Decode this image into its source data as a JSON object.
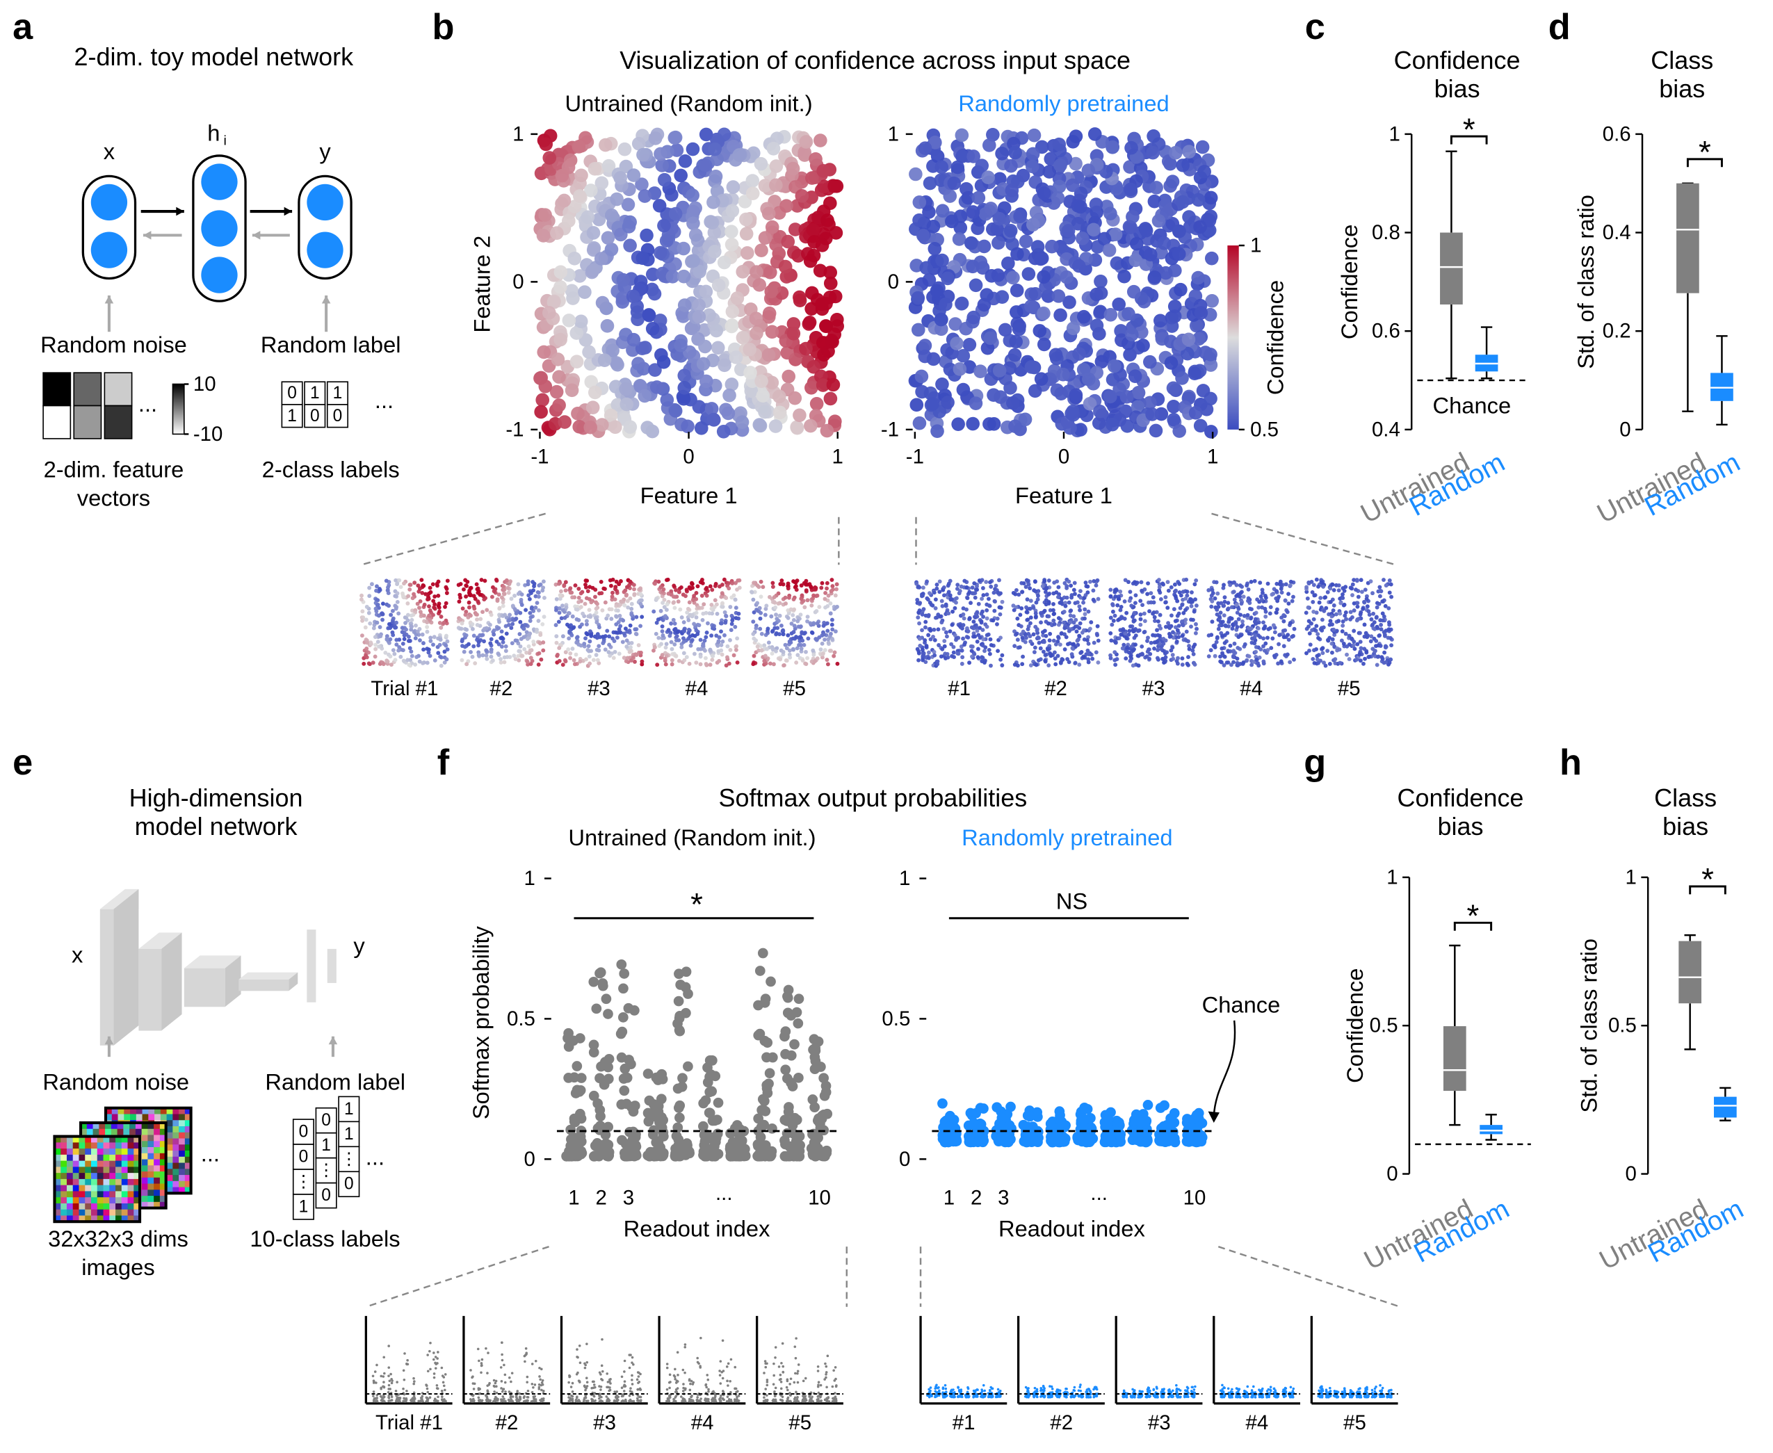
{
  "colors": {
    "untrained": "#808080",
    "pretrained": "#1a8cff"
  },
  "panel_a": {
    "letter": "a",
    "title": "2-dim. toy model network",
    "input_label": "x",
    "hidden_label": "h",
    "hidden_sub": "i",
    "output_label": "y",
    "noise_label": "Random noise",
    "label_label": "Random label",
    "colorbar_ticks": [
      10,
      -10
    ],
    "ellipsis": "...",
    "feature_caption": [
      "2-dim. feature",
      "vectors"
    ],
    "class_caption": "2-class labels",
    "label_grid": [
      [
        0,
        1,
        1
      ],
      [
        1,
        0,
        0
      ]
    ]
  },
  "panel_b": {
    "letter": "b",
    "title": "Visualization of confidence across input space",
    "plots": [
      {
        "subtitle": "Untrained (Random init.)",
        "color": "#000000"
      },
      {
        "subtitle": "Randomly pretrained",
        "color": "#1a8cff"
      }
    ],
    "xlabel": "Feature 1",
    "ylabel": "Feature 2",
    "xlim": [
      -1,
      1
    ],
    "ylim": [
      -1,
      1
    ],
    "xticks": [
      -1,
      0,
      1
    ],
    "yticks": [
      -1,
      0,
      1
    ],
    "colorbar": {
      "label": "Confidence",
      "range": [
        0.5,
        1
      ],
      "ticks": [
        1,
        0.5
      ]
    },
    "trial_labels": [
      "Trial #1",
      "#2",
      "#3",
      "#4",
      "#5"
    ],
    "trial_labels_2": [
      "#1",
      "#2",
      "#3",
      "#4",
      "#5"
    ]
  },
  "panel_c": {
    "letter": "c",
    "title": [
      "Confidence",
      "bias"
    ],
    "ylabel": "Confidence",
    "ylim": [
      0.4,
      1
    ],
    "yticks": [
      0.4,
      0.6,
      0.8,
      1
    ],
    "chance": 0.5,
    "chance_label": "Chance",
    "sig": "*",
    "boxes": [
      {
        "name": "Untrained",
        "color": "#808080",
        "whislo": 0.504,
        "q1": 0.654,
        "med": 0.73,
        "q3": 0.8,
        "whishi": 0.965
      },
      {
        "name": "Random",
        "color": "#1a8cff",
        "whislo": 0.504,
        "q1": 0.518,
        "med": 0.534,
        "q3": 0.552,
        "whishi": 0.608
      }
    ]
  },
  "panel_d": {
    "letter": "d",
    "title": [
      "Class",
      "bias"
    ],
    "ylabel": "Std. of class ratio",
    "ylim": [
      0,
      0.6
    ],
    "yticks": [
      0,
      0.2,
      0.4,
      0.6
    ],
    "sig": "*",
    "boxes": [
      {
        "name": "Untrained",
        "color": "#808080",
        "whislo": 0.037,
        "q1": 0.277,
        "med": 0.406,
        "q3": 0.5,
        "whishi": 0.5
      },
      {
        "name": "Random",
        "color": "#1a8cff",
        "whislo": 0.01,
        "q1": 0.058,
        "med": 0.085,
        "q3": 0.115,
        "whishi": 0.19
      }
    ]
  },
  "panel_e": {
    "letter": "e",
    "title": [
      "High-dimension",
      "model network"
    ],
    "input_label": "x",
    "output_label": "y",
    "noise_label": "Random noise",
    "label_label": "Random label",
    "ellipsis": "...",
    "image_caption": [
      "32x32x3 dims",
      "images"
    ],
    "class_caption": "10-class labels",
    "label_columns": [
      [
        0,
        0,
        "⋮",
        1
      ],
      [
        0,
        1,
        "⋮",
        0
      ],
      [
        1,
        1,
        "⋮",
        0
      ]
    ]
  },
  "panel_f": {
    "letter": "f",
    "title": "Softmax output probabilities",
    "plots": [
      {
        "subtitle": "Untrained (Random init.)",
        "color": "#000000",
        "sig": "*"
      },
      {
        "subtitle": "Randomly pretrained",
        "color": "#1a8cff",
        "sig": "NS"
      }
    ],
    "ylabel": "Softmax probability",
    "xlabel": "Readout index",
    "ylim": [
      0,
      1
    ],
    "yticks": [
      0,
      0.5,
      1
    ],
    "xticks": [
      1,
      2,
      3,
      10
    ],
    "xtick_ellipsis": "...",
    "chance": 0.1,
    "chance_label": "Chance",
    "trial_labels": [
      "Trial #1",
      "#2",
      "#3",
      "#4",
      "#5"
    ],
    "trial_labels_2": [
      "#1",
      "#2",
      "#3",
      "#4",
      "#5"
    ]
  },
  "panel_g": {
    "letter": "g",
    "title": [
      "Confidence",
      "bias"
    ],
    "ylabel": "Confidence",
    "ylim": [
      0,
      1
    ],
    "yticks": [
      0,
      0.5,
      1
    ],
    "chance": 0.1,
    "sig": "*",
    "boxes": [
      {
        "name": "Untrained",
        "color": "#808080",
        "whislo": 0.165,
        "q1": 0.28,
        "med": 0.35,
        "q3": 0.498,
        "whishi": 0.77
      },
      {
        "name": "Random",
        "color": "#1a8cff",
        "whislo": 0.115,
        "q1": 0.134,
        "med": 0.146,
        "q3": 0.165,
        "whishi": 0.2
      }
    ]
  },
  "panel_h": {
    "letter": "h",
    "title": [
      "Class",
      "bias"
    ],
    "ylabel": "Std. of class ratio",
    "ylim": [
      0,
      1
    ],
    "yticks": [
      0,
      0.5,
      1
    ],
    "sig": "*",
    "boxes": [
      {
        "name": "Untrained",
        "color": "#808080",
        "whislo": 0.42,
        "q1": 0.575,
        "med": 0.663,
        "q3": 0.785,
        "whishi": 0.805
      },
      {
        "name": "Random",
        "color": "#1a8cff",
        "whislo": 0.18,
        "q1": 0.19,
        "med": 0.23,
        "q3": 0.26,
        "whishi": 0.29
      }
    ]
  }
}
